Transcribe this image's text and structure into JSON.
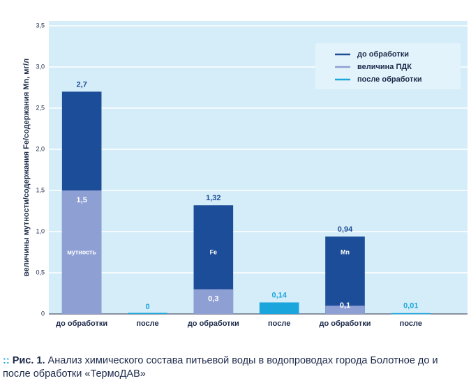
{
  "chart_data": {
    "type": "bar",
    "ylabel": "величины мутности/содержания Fe/содержания Mn, мг/л",
    "categories": [
      "до обработки",
      "после",
      "до обработки",
      "после",
      "до обработки",
      "после"
    ],
    "bar_labels": [
      "мутность",
      null,
      "Fe",
      null,
      "Mn",
      null
    ],
    "series": [
      {
        "name": "до обработки",
        "color": "#1c4d98",
        "values": [
          2.7,
          null,
          1.32,
          null,
          0.94,
          null
        ],
        "value_labels": [
          "2,7",
          null,
          "1,32",
          null,
          "0,94",
          null
        ]
      },
      {
        "name": "величина ПДК",
        "color": "#8e9fd4",
        "values": [
          1.5,
          null,
          0.3,
          null,
          0.1,
          null
        ],
        "value_labels": [
          "1,5",
          null,
          "0,3",
          null,
          "0,1",
          null
        ]
      },
      {
        "name": "после обработки",
        "color": "#1aa6dc",
        "values": [
          null,
          0,
          null,
          0.14,
          null,
          0.01
        ],
        "value_labels": [
          null,
          "0",
          null,
          "0,14",
          null,
          "0,01"
        ]
      }
    ],
    "ylim": [
      0,
      3.5
    ],
    "yticks": [
      0,
      {
        "value": 0.5,
        "label": "0,5"
      },
      {
        "value": 1.0,
        "label": "1,0"
      },
      {
        "value": 1.5,
        "label": "1,5"
      },
      {
        "value": 2.0,
        "label": "2,0"
      },
      {
        "value": 2.5,
        "label": "2,5"
      },
      {
        "value": 3.0,
        "label": "3,0"
      },
      {
        "value": 3.5,
        "label": "3,5"
      }
    ],
    "grid": true,
    "legend": "top-right",
    "caption": {
      "label": "Рис. 1.",
      "text": "Анализ химического состава питьевой воды в водопроводах города Болотное до и после обработки «ТермоДАВ»"
    }
  }
}
